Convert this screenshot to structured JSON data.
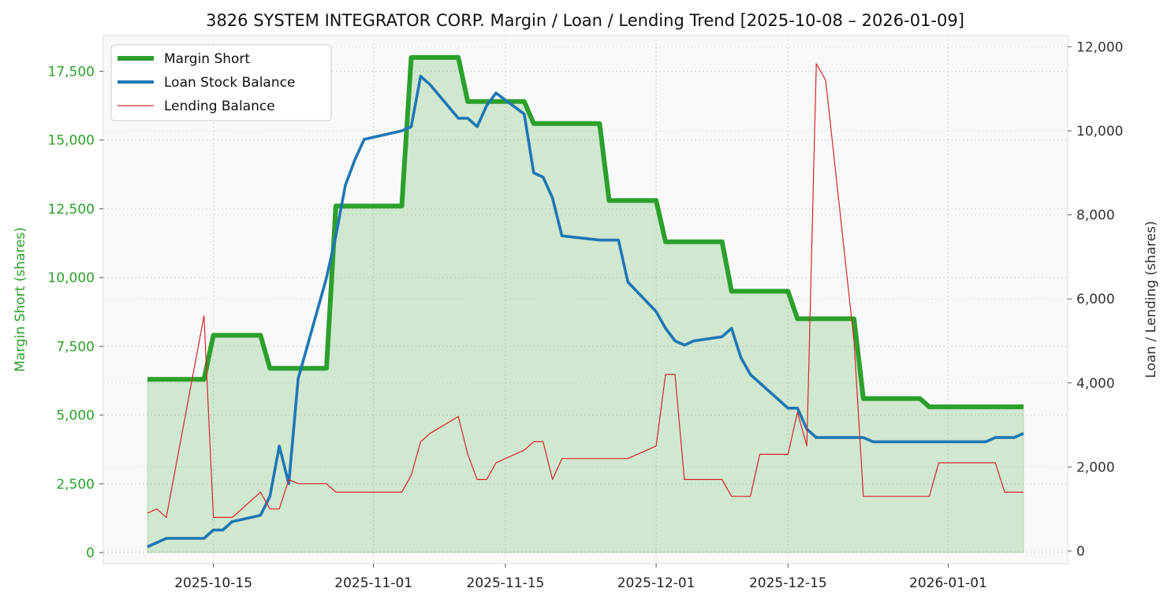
{
  "chart_data": {
    "type": "line",
    "title": "3826 SYSTEM INTEGRATOR CORP. Margin / Loan / Lending Trend [2025-10-08 – 2026-01-09]",
    "ylabel_left": "Margin Short (shares)",
    "ylabel_right": "Loan / Lending (shares)",
    "xlabel": "",
    "grid": true,
    "legend_position": "top-left",
    "x_ticks": [
      {
        "date": "2025-10-15",
        "label": "2025-10-15"
      },
      {
        "date": "2025-11-01",
        "label": "2025-11-01"
      },
      {
        "date": "2025-11-15",
        "label": "2025-11-15"
      },
      {
        "date": "2025-12-01",
        "label": "2025-12-01"
      },
      {
        "date": "2025-12-15",
        "label": "2025-12-15"
      },
      {
        "date": "2026-01-01",
        "label": "2026-01-01"
      }
    ],
    "y_left": {
      "range": [
        -400,
        18800
      ],
      "ticks": [
        0,
        2500,
        5000,
        7500,
        10000,
        12500,
        15000,
        17500
      ],
      "tick_labels": [
        "0",
        "2,500",
        "5,000",
        "7,500",
        "10,000",
        "12,500",
        "15,000",
        "17,500"
      ]
    },
    "y_right": {
      "range": [
        -300,
        12270
      ],
      "ticks": [
        0,
        2000,
        4000,
        6000,
        8000,
        10000,
        12000
      ],
      "tick_labels": [
        "0",
        "2,000",
        "4,000",
        "6,000",
        "8,000",
        "10,000",
        "12,000"
      ]
    },
    "series": [
      {
        "name": "Margin Short",
        "axis": "left",
        "color": "#2ca02c",
        "points": [
          [
            "2025-10-08",
            6300
          ],
          [
            "2025-10-14",
            6300
          ],
          [
            "2025-10-15",
            7900
          ],
          [
            "2025-10-20",
            7900
          ],
          [
            "2025-10-21",
            6700
          ],
          [
            "2025-10-27",
            6700
          ],
          [
            "2025-10-28",
            12600
          ],
          [
            "2025-11-04",
            12600
          ],
          [
            "2025-11-05",
            18000
          ],
          [
            "2025-11-10",
            18000
          ],
          [
            "2025-11-11",
            16400
          ],
          [
            "2025-11-17",
            16400
          ],
          [
            "2025-11-18",
            15600
          ],
          [
            "2025-11-25",
            15600
          ],
          [
            "2025-11-26",
            12800
          ],
          [
            "2025-12-01",
            12800
          ],
          [
            "2025-12-02",
            11300
          ],
          [
            "2025-12-08",
            11300
          ],
          [
            "2025-12-09",
            9500
          ],
          [
            "2025-12-15",
            9500
          ],
          [
            "2025-12-16",
            8500
          ],
          [
            "2025-12-22",
            8500
          ],
          [
            "2025-12-23",
            5600
          ],
          [
            "2025-12-29",
            5600
          ],
          [
            "2025-12-30",
            5300
          ],
          [
            "2026-01-09",
            5300
          ]
        ]
      },
      {
        "name": "Loan Stock Balance",
        "axis": "right",
        "color": "#1f77b4",
        "points": [
          [
            "2025-10-08",
            100
          ],
          [
            "2025-10-10",
            300
          ],
          [
            "2025-10-14",
            300
          ],
          [
            "2025-10-15",
            500
          ],
          [
            "2025-10-16",
            500
          ],
          [
            "2025-10-17",
            700
          ],
          [
            "2025-10-20",
            850
          ],
          [
            "2025-10-21",
            1300
          ],
          [
            "2025-10-22",
            2500
          ],
          [
            "2025-10-23",
            1600
          ],
          [
            "2025-10-24",
            4100
          ],
          [
            "2025-10-27",
            6500
          ],
          [
            "2025-10-28",
            7500
          ],
          [
            "2025-10-29",
            8700
          ],
          [
            "2025-10-30",
            9300
          ],
          [
            "2025-10-31",
            9800
          ],
          [
            "2025-11-04",
            10000
          ],
          [
            "2025-11-05",
            10100
          ],
          [
            "2025-11-06",
            11300
          ],
          [
            "2025-11-07",
            11100
          ],
          [
            "2025-11-10",
            10300
          ],
          [
            "2025-11-11",
            10300
          ],
          [
            "2025-11-12",
            10100
          ],
          [
            "2025-11-13",
            10600
          ],
          [
            "2025-11-14",
            10900
          ],
          [
            "2025-11-17",
            10400
          ],
          [
            "2025-11-18",
            9000
          ],
          [
            "2025-11-19",
            8900
          ],
          [
            "2025-11-20",
            8400
          ],
          [
            "2025-11-21",
            7500
          ],
          [
            "2025-11-25",
            7400
          ],
          [
            "2025-11-27",
            7400
          ],
          [
            "2025-11-28",
            6400
          ],
          [
            "2025-12-01",
            5700
          ],
          [
            "2025-12-02",
            5300
          ],
          [
            "2025-12-03",
            5000
          ],
          [
            "2025-12-04",
            4900
          ],
          [
            "2025-12-05",
            5000
          ],
          [
            "2025-12-08",
            5100
          ],
          [
            "2025-12-09",
            5300
          ],
          [
            "2025-12-10",
            4600
          ],
          [
            "2025-12-11",
            4200
          ],
          [
            "2025-12-15",
            3400
          ],
          [
            "2025-12-16",
            3400
          ],
          [
            "2025-12-17",
            2900
          ],
          [
            "2025-12-18",
            2700
          ],
          [
            "2025-12-23",
            2700
          ],
          [
            "2025-12-24",
            2600
          ],
          [
            "2026-01-05",
            2600
          ],
          [
            "2026-01-06",
            2700
          ],
          [
            "2026-01-08",
            2700
          ],
          [
            "2026-01-09",
            2800
          ]
        ]
      },
      {
        "name": "Lending Balance",
        "axis": "right",
        "color": "#d62728",
        "points": [
          [
            "2025-10-08",
            900
          ],
          [
            "2025-10-09",
            1000
          ],
          [
            "2025-10-10",
            800
          ],
          [
            "2025-10-14",
            5600
          ],
          [
            "2025-10-15",
            800
          ],
          [
            "2025-10-17",
            800
          ],
          [
            "2025-10-20",
            1400
          ],
          [
            "2025-10-21",
            1000
          ],
          [
            "2025-10-22",
            1000
          ],
          [
            "2025-10-23",
            1700
          ],
          [
            "2025-10-24",
            1600
          ],
          [
            "2025-10-27",
            1600
          ],
          [
            "2025-10-28",
            1400
          ],
          [
            "2025-11-03",
            1400
          ],
          [
            "2025-11-04",
            1400
          ],
          [
            "2025-11-05",
            1800
          ],
          [
            "2025-11-06",
            2600
          ],
          [
            "2025-11-07",
            2800
          ],
          [
            "2025-11-10",
            3200
          ],
          [
            "2025-11-11",
            2300
          ],
          [
            "2025-11-12",
            1700
          ],
          [
            "2025-11-13",
            1700
          ],
          [
            "2025-11-14",
            2100
          ],
          [
            "2025-11-17",
            2400
          ],
          [
            "2025-11-18",
            2600
          ],
          [
            "2025-11-19",
            2600
          ],
          [
            "2025-11-20",
            1700
          ],
          [
            "2025-11-21",
            2200
          ],
          [
            "2025-11-28",
            2200
          ],
          [
            "2025-12-01",
            2500
          ],
          [
            "2025-12-02",
            4200
          ],
          [
            "2025-12-03",
            4200
          ],
          [
            "2025-12-04",
            1700
          ],
          [
            "2025-12-08",
            1700
          ],
          [
            "2025-12-09",
            1300
          ],
          [
            "2025-12-11",
            1300
          ],
          [
            "2025-12-12",
            2300
          ],
          [
            "2025-12-15",
            2300
          ],
          [
            "2025-12-16",
            3300
          ],
          [
            "2025-12-17",
            2500
          ],
          [
            "2025-12-18",
            11600
          ],
          [
            "2025-12-19",
            11200
          ],
          [
            "2025-12-22",
            5000
          ],
          [
            "2025-12-23",
            1300
          ],
          [
            "2025-12-30",
            1300
          ],
          [
            "2025-12-31",
            2100
          ],
          [
            "2026-01-06",
            2100
          ],
          [
            "2026-01-07",
            1400
          ],
          [
            "2026-01-09",
            1400
          ]
        ]
      }
    ]
  }
}
